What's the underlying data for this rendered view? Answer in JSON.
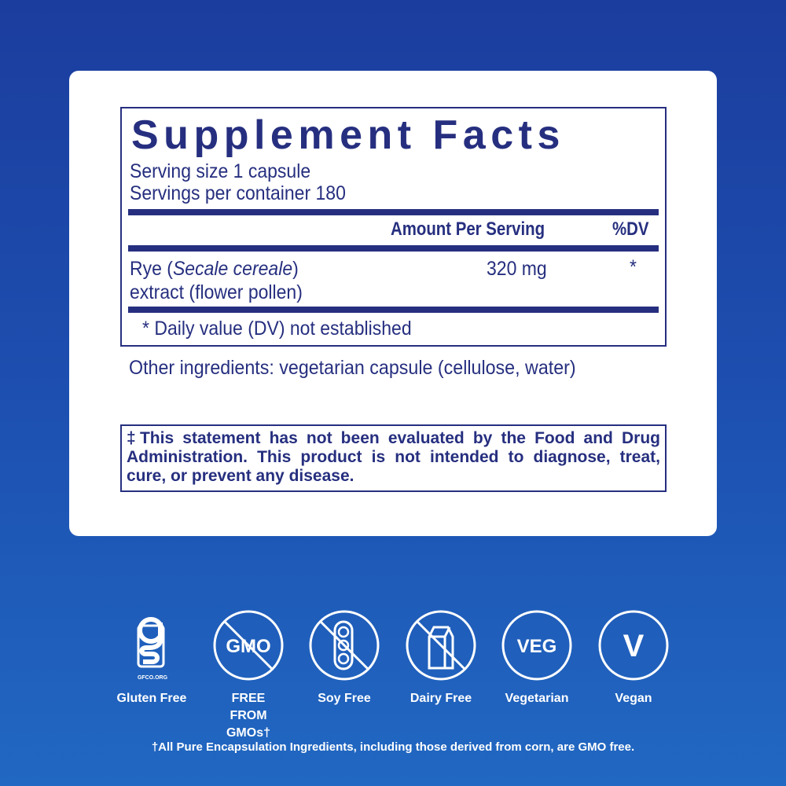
{
  "facts": {
    "title": "Supplement Facts",
    "serving_size": "Serving size  1 capsule",
    "servings_per_container": "Servings per container  180",
    "col_amount": "Amount Per Serving",
    "col_dv": "%DV",
    "ingredient": {
      "name_prefix": "Rye (",
      "latin": "Secale cereale",
      "name_suffix": ")",
      "line2": "extract (flower pollen)",
      "amount": "320 mg",
      "dv": "*"
    },
    "footnote": "* Daily value (DV) not established"
  },
  "other_ingredients": "Other ingredients: vegetarian capsule (cellulose, water)",
  "disclaimer": "‡This statement has not been evaluated by the Food and Drug Administration. This product is not intended to diagnose, treat, cure, or prevent any disease.",
  "badges": [
    {
      "icon": "gluten-free-gfco-icon",
      "logo_text": "GFCO.ORG",
      "label": "Gluten Free"
    },
    {
      "icon": "no-gmo-icon",
      "icon_text": "GMO",
      "label": "FREE FROM GMOs†"
    },
    {
      "icon": "soy-free-icon",
      "label": "Soy Free"
    },
    {
      "icon": "dairy-free-icon",
      "label": "Dairy Free"
    },
    {
      "icon": "vegetarian-icon",
      "icon_text": "VEG",
      "label": "Vegetarian"
    },
    {
      "icon": "vegan-icon",
      "icon_text": "V",
      "label": "Vegan"
    }
  ],
  "gmo_footnote": "†All Pure Encapsulation Ingredients, including those derived from corn, are GMO free.",
  "colors": {
    "navy": "#262f7f",
    "background_top": "#1b3d9e",
    "background_bottom": "#2168c2"
  }
}
